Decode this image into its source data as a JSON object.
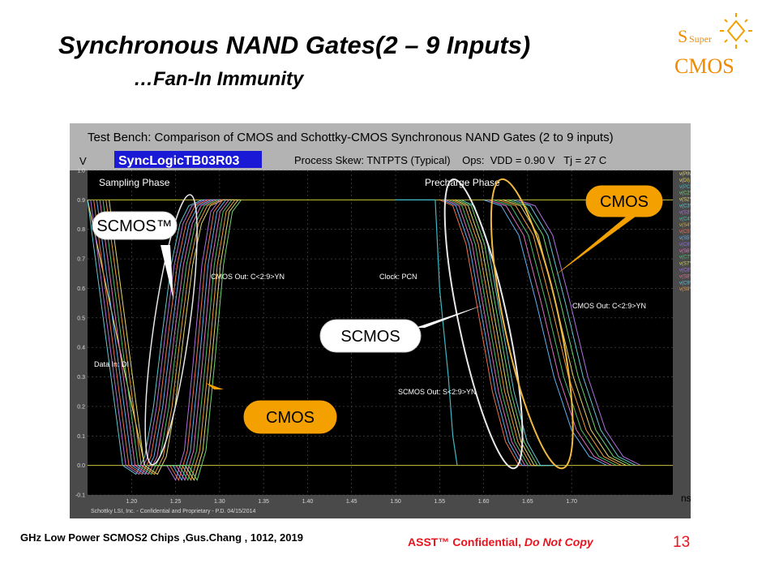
{
  "slide": {
    "title": "Synchronous NAND Gates(2 – 9 Inputs)",
    "subtitle": "…Fan-In Immunity",
    "logo": {
      "small": "Super",
      "big": "CMOS"
    },
    "footer_left": "GHz Low Power SCMOS2 Chips ,Gus.Chang , 1012, 2019",
    "footer_brand": "ASST™ Confidential,",
    "footer_brand_italic": "Do Not Copy",
    "page_number": "13",
    "colors": {
      "accent_red": "#e8141e",
      "logo_orange": "#f08a00",
      "callout_orange": "#f4a000"
    }
  },
  "chart_data": {
    "type": "line",
    "title": "Test Bench: Comparison of CMOS and Schottky-CMOS Synchronous NAND Gates (2 to 9 inputs)",
    "testbench_name": "SyncLogicTB03R03",
    "process_info": "Process Skew: TNTPTS (Typical)    Ops:  VDD = 0.90 V   Tj = 27 C",
    "ylabel": "V",
    "xlabel": "ns",
    "xlim": [
      1.15,
      1.815
    ],
    "ylim": [
      -0.1,
      1.0
    ],
    "x_ticks": [
      "1.20",
      "1.25",
      "1.30",
      "1.35",
      "1.40",
      "1.45",
      "1.50",
      "1.55",
      "1.60",
      "1.65",
      "1.70"
    ],
    "y_ticks": [
      "-0.1",
      "0.0",
      "0.1",
      "0.2",
      "0.3",
      "0.4",
      "0.5",
      "0.6",
      "0.7",
      "0.8",
      "0.9",
      "1.0"
    ],
    "grid": true,
    "legend_position": "right",
    "legend": [
      "v(PIN)",
      "v(DI)",
      "v(PCN)",
      "v(C2YN)",
      "v(S2YN)",
      "v(C3YN)",
      "v(S3YN)",
      "v(C4YN)",
      "v(S4YN)",
      "v(C5YN)",
      "v(S5YN)",
      "v(C6YN)",
      "v(S6YN)",
      "v(C7YN)",
      "v(S7YN)",
      "v(C8YN)",
      "v(S8YN)",
      "v(C9YN)",
      "v(S9YN)"
    ],
    "legend_colors": [
      "#e5d86a",
      "#e5d86a",
      "#3fb7c4",
      "#6fd66f",
      "#e5d86a",
      "#60c8d0",
      "#b070e0",
      "#4ac0a0",
      "#d0b040",
      "#f07050",
      "#60b0f0",
      "#9070e0",
      "#e070c0",
      "#50c070",
      "#d0d060",
      "#a070e0",
      "#e07090",
      "#60c0e0",
      "#f0a040"
    ],
    "reference_levels": [
      0.9,
      0.0
    ],
    "annotations": [
      "Sampling Phase",
      "Precharge Phase",
      "CMOS Out: C<2:9>YN",
      "Clock: PCN",
      "CMOS Out: C<2:9>YN",
      "Data In: DI",
      "SCMOS Out: S<2:9>YN",
      "Schottky LSI, Inc. - Confidential and Proprietary - P.D. 04/15/2014"
    ],
    "callouts": [
      "SCMOS™",
      "CMOS",
      "SCMOS",
      "CMOS"
    ],
    "series": [
      {
        "name": "v(DI)",
        "x": [
          1.15,
          1.215
        ],
        "y": [
          0.9,
          0.0
        ]
      },
      {
        "name": "v(PCN)",
        "x": [
          1.5,
          1.545,
          1.55,
          1.56,
          1.565,
          1.57
        ],
        "y": [
          0.9,
          0.9,
          0.6,
          0.3,
          0.1,
          0.0
        ]
      },
      {
        "name": "SCMOS rising (S<2:9>YN)",
        "x": [
          1.15,
          1.19,
          1.205,
          1.215,
          1.225,
          1.235,
          1.245,
          1.255,
          1.265,
          1.28,
          1.3
        ],
        "y": [
          0.9,
          0.0,
          -0.03,
          0.03,
          0.2,
          0.45,
          0.68,
          0.82,
          0.88,
          0.9,
          0.9
        ]
      },
      {
        "name": "CMOS rising (C<2:9>YN)",
        "x": [
          1.2,
          1.24,
          1.25,
          1.26,
          1.27,
          1.28,
          1.29,
          1.3
        ],
        "y": [
          0.0,
          0.0,
          -0.05,
          0.05,
          0.35,
          0.68,
          0.86,
          0.9
        ]
      },
      {
        "name": "SCMOS falling (S<2:9>YN)",
        "x": [
          1.55,
          1.565,
          1.58,
          1.595,
          1.61,
          1.625,
          1.64,
          1.66
        ],
        "y": [
          0.9,
          0.88,
          0.75,
          0.5,
          0.25,
          0.08,
          0.0,
          0.0
        ]
      },
      {
        "name": "CMOS falling (C<2:9>YN)",
        "x": [
          1.6,
          1.62,
          1.64,
          1.66,
          1.68,
          1.7,
          1.72,
          1.74
        ],
        "y": [
          0.9,
          0.88,
          0.78,
          0.55,
          0.3,
          0.12,
          0.03,
          0.0
        ]
      }
    ]
  }
}
